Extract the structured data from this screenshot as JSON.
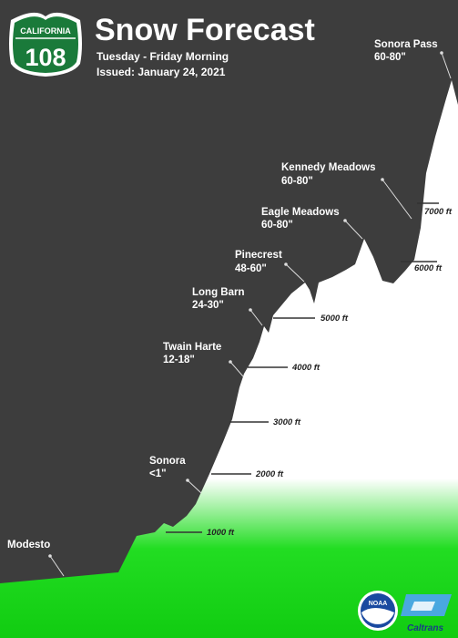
{
  "header": {
    "shield_state": "CALIFORNIA",
    "shield_route": "108",
    "title": "Snow Forecast",
    "subtitle": "Tuesday - Friday Morning",
    "issued": "Issued: January 24, 2021"
  },
  "locations": [
    {
      "name": "Sonora Pass",
      "forecast": "60-80\""
    },
    {
      "name": "Kennedy Meadows",
      "forecast": "60-80\""
    },
    {
      "name": "Eagle Meadows",
      "forecast": "60-80\""
    },
    {
      "name": "Pinecrest",
      "forecast": "48-60\""
    },
    {
      "name": "Long Barn",
      "forecast": "24-30\""
    },
    {
      "name": "Twain Harte",
      "forecast": "12-18\""
    },
    {
      "name": "Sonora",
      "forecast": "<1\""
    },
    {
      "name": "Modesto"
    }
  ],
  "elevations": [
    "7000 ft",
    "6000 ft",
    "5000 ft",
    "4000 ft",
    "3000 ft",
    "2000 ft",
    "1000 ft"
  ],
  "logos": {
    "noaa": "NOAA",
    "caltrans": "Caltrans"
  }
}
